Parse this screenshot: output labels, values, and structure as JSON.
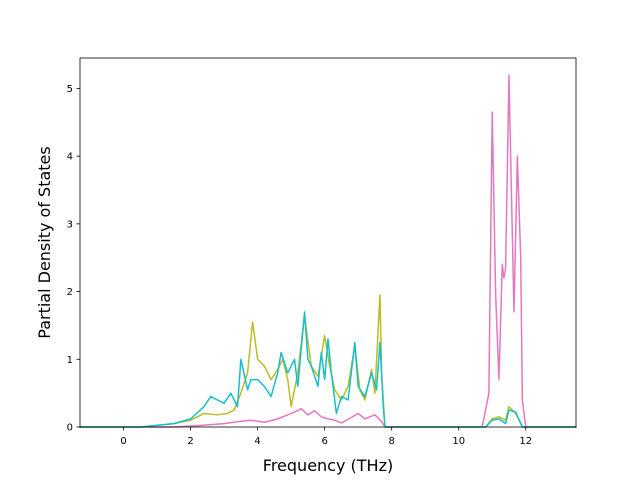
{
  "chart_data": {
    "type": "line",
    "title": "",
    "xlabel": "Frequency (THz)",
    "ylabel": "Partial Density of States",
    "xlim": [
      -1.3,
      13.5
    ],
    "ylim": [
      0,
      5.45
    ],
    "xticks": [
      0,
      2,
      4,
      6,
      8,
      10,
      12
    ],
    "yticks": [
      0,
      1,
      2,
      3,
      4,
      5
    ],
    "grid": false,
    "legend": "none",
    "series": [
      {
        "color": "#e377c2",
        "points": [
          [
            -1.3,
            0
          ],
          [
            1.5,
            0
          ],
          [
            2.2,
            0.02
          ],
          [
            3.0,
            0.05
          ],
          [
            3.4,
            0.08
          ],
          [
            3.8,
            0.1
          ],
          [
            4.2,
            0.07
          ],
          [
            4.6,
            0.12
          ],
          [
            4.9,
            0.18
          ],
          [
            5.1,
            0.22
          ],
          [
            5.3,
            0.27
          ],
          [
            5.5,
            0.18
          ],
          [
            5.7,
            0.24
          ],
          [
            5.9,
            0.15
          ],
          [
            6.1,
            0.12
          ],
          [
            6.3,
            0.1
          ],
          [
            6.5,
            0.06
          ],
          [
            6.8,
            0.14
          ],
          [
            7.0,
            0.2
          ],
          [
            7.2,
            0.12
          ],
          [
            7.5,
            0.18
          ],
          [
            7.7,
            0.08
          ],
          [
            7.8,
            0
          ],
          [
            10.7,
            0
          ],
          [
            10.9,
            0.5
          ],
          [
            11.0,
            4.65
          ],
          [
            11.1,
            2.0
          ],
          [
            11.2,
            0.7
          ],
          [
            11.3,
            2.4
          ],
          [
            11.35,
            2.2
          ],
          [
            11.4,
            2.35
          ],
          [
            11.5,
            5.2
          ],
          [
            11.55,
            4.0
          ],
          [
            11.65,
            1.7
          ],
          [
            11.75,
            4.0
          ],
          [
            11.85,
            2.5
          ],
          [
            11.9,
            0.4
          ],
          [
            12.0,
            0
          ],
          [
            13.5,
            0
          ]
        ]
      },
      {
        "color": "#bcbd22",
        "points": [
          [
            -1.3,
            0
          ],
          [
            0.5,
            0
          ],
          [
            1.5,
            0.05
          ],
          [
            2.0,
            0.1
          ],
          [
            2.4,
            0.2
          ],
          [
            2.8,
            0.18
          ],
          [
            3.1,
            0.2
          ],
          [
            3.3,
            0.25
          ],
          [
            3.5,
            0.5
          ],
          [
            3.7,
            0.8
          ],
          [
            3.85,
            1.55
          ],
          [
            4.0,
            1.0
          ],
          [
            4.2,
            0.9
          ],
          [
            4.4,
            0.7
          ],
          [
            4.6,
            0.85
          ],
          [
            4.75,
            1.0
          ],
          [
            4.9,
            0.7
          ],
          [
            5.0,
            0.3
          ],
          [
            5.2,
            0.8
          ],
          [
            5.4,
            1.65
          ],
          [
            5.6,
            0.9
          ],
          [
            5.8,
            0.75
          ],
          [
            6.0,
            1.35
          ],
          [
            6.15,
            0.9
          ],
          [
            6.3,
            0.55
          ],
          [
            6.5,
            0.4
          ],
          [
            6.7,
            0.6
          ],
          [
            6.9,
            1.2
          ],
          [
            7.05,
            0.55
          ],
          [
            7.2,
            0.4
          ],
          [
            7.4,
            0.85
          ],
          [
            7.5,
            0.5
          ],
          [
            7.65,
            1.95
          ],
          [
            7.7,
            0.8
          ],
          [
            7.8,
            0
          ],
          [
            10.8,
            0
          ],
          [
            11.0,
            0.12
          ],
          [
            11.2,
            0.15
          ],
          [
            11.4,
            0.1
          ],
          [
            11.5,
            0.3
          ],
          [
            11.7,
            0.2
          ],
          [
            11.9,
            0
          ],
          [
            13.5,
            0
          ]
        ]
      },
      {
        "color": "#17becf",
        "points": [
          [
            -1.3,
            0
          ],
          [
            0.5,
            0
          ],
          [
            1.5,
            0.05
          ],
          [
            2.0,
            0.12
          ],
          [
            2.4,
            0.3
          ],
          [
            2.6,
            0.45
          ],
          [
            2.8,
            0.4
          ],
          [
            3.0,
            0.35
          ],
          [
            3.2,
            0.5
          ],
          [
            3.4,
            0.3
          ],
          [
            3.5,
            1.0
          ],
          [
            3.7,
            0.55
          ],
          [
            3.8,
            0.7
          ],
          [
            4.0,
            0.7
          ],
          [
            4.2,
            0.6
          ],
          [
            4.4,
            0.45
          ],
          [
            4.6,
            0.8
          ],
          [
            4.7,
            1.1
          ],
          [
            4.9,
            0.8
          ],
          [
            5.0,
            0.9
          ],
          [
            5.1,
            1.0
          ],
          [
            5.2,
            0.6
          ],
          [
            5.4,
            1.7
          ],
          [
            5.5,
            1.0
          ],
          [
            5.6,
            0.9
          ],
          [
            5.8,
            0.6
          ],
          [
            5.9,
            1.1
          ],
          [
            6.0,
            0.7
          ],
          [
            6.1,
            1.3
          ],
          [
            6.2,
            0.8
          ],
          [
            6.35,
            0.2
          ],
          [
            6.5,
            0.45
          ],
          [
            6.7,
            0.4
          ],
          [
            6.9,
            1.25
          ],
          [
            7.0,
            0.6
          ],
          [
            7.2,
            0.45
          ],
          [
            7.4,
            0.8
          ],
          [
            7.55,
            0.55
          ],
          [
            7.65,
            1.25
          ],
          [
            7.75,
            0.3
          ],
          [
            7.8,
            0
          ],
          [
            10.8,
            0
          ],
          [
            11.0,
            0.1
          ],
          [
            11.2,
            0.12
          ],
          [
            11.4,
            0.05
          ],
          [
            11.5,
            0.25
          ],
          [
            11.7,
            0.22
          ],
          [
            11.9,
            0
          ],
          [
            13.5,
            0
          ]
        ]
      }
    ]
  }
}
